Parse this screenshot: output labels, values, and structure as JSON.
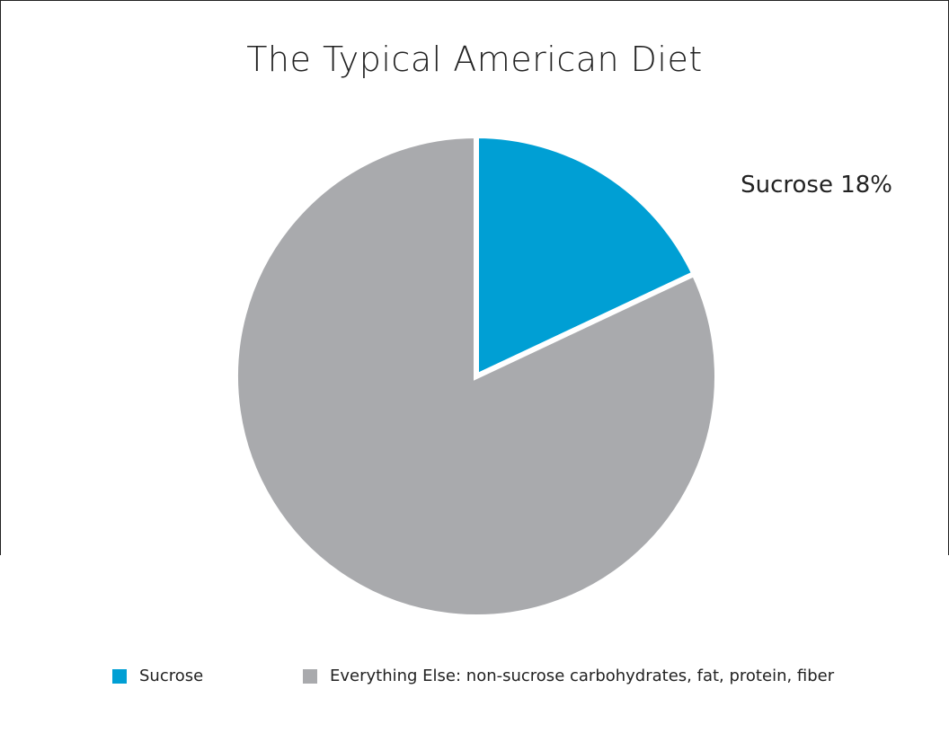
{
  "chart_data": {
    "type": "pie",
    "title": "The Typical American Diet",
    "slices": [
      {
        "label": "Sucrose",
        "value": 18,
        "color": "#009fd4",
        "data_label": "Sucrose 18%"
      },
      {
        "label": "Everything Else: non-sucrose carbohydrates, fat, protein, fiber",
        "value": 82,
        "color": "#a9aaad"
      }
    ],
    "legend_position": "bottom"
  }
}
